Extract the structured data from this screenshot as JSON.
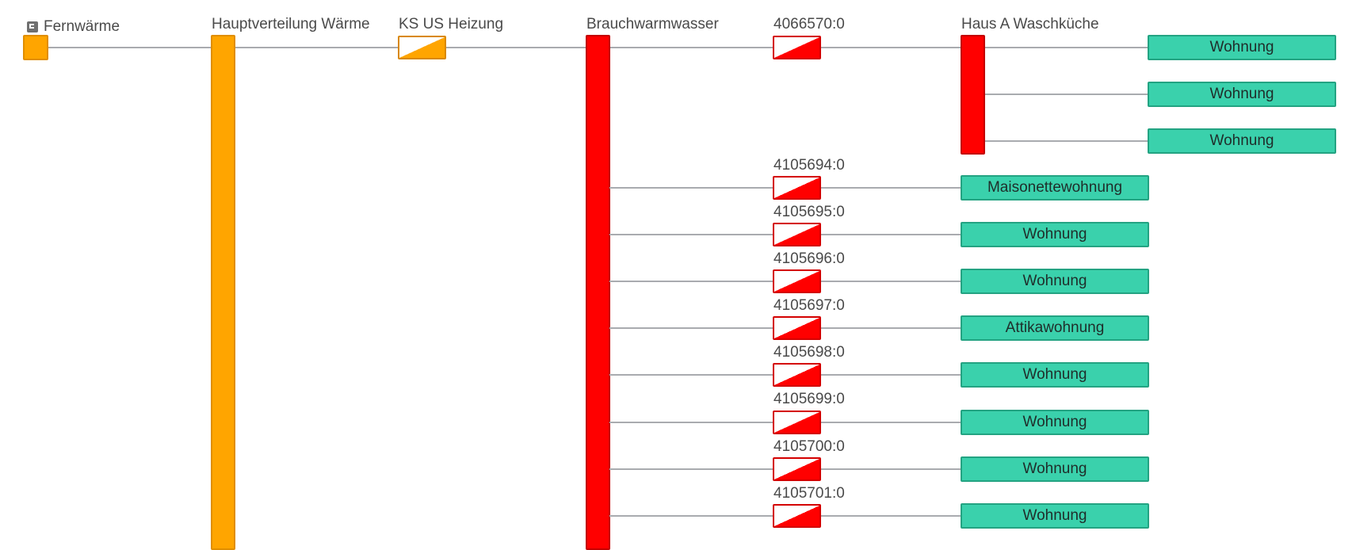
{
  "source": {
    "label": "Fernwärme",
    "icon": "building-icon",
    "color": "#ffa500"
  },
  "main_distribution": {
    "label": "Hauptverteilung Wärme",
    "color": "#ffa500"
  },
  "heating_meter": {
    "label": "KS US Heizung",
    "color": "#ffa500"
  },
  "hot_water": {
    "label": "Brauchwarmwasser",
    "color": "#ff0000"
  },
  "house_meter": {
    "label": "4066570:0"
  },
  "house": {
    "label": "Haus A Waschküche",
    "color": "#ff0000"
  },
  "house_units": [
    {
      "label": "Wohnung"
    },
    {
      "label": "Wohnung"
    },
    {
      "label": "Wohnung"
    }
  ],
  "branches": [
    {
      "meter": "4105694:0",
      "unit": "Maisonettewohnung"
    },
    {
      "meter": "4105695:0",
      "unit": "Wohnung"
    },
    {
      "meter": "4105696:0",
      "unit": "Wohnung"
    },
    {
      "meter": "4105697:0",
      "unit": "Attikawohnung"
    },
    {
      "meter": "4105698:0",
      "unit": "Wohnung"
    },
    {
      "meter": "4105699:0",
      "unit": "Wohnung"
    },
    {
      "meter": "4105700:0",
      "unit": "Wohnung"
    },
    {
      "meter": "4105701:0",
      "unit": "Wohnung"
    }
  ],
  "colors": {
    "unit": "#3ad1ac",
    "connector": "#a9abaf"
  }
}
